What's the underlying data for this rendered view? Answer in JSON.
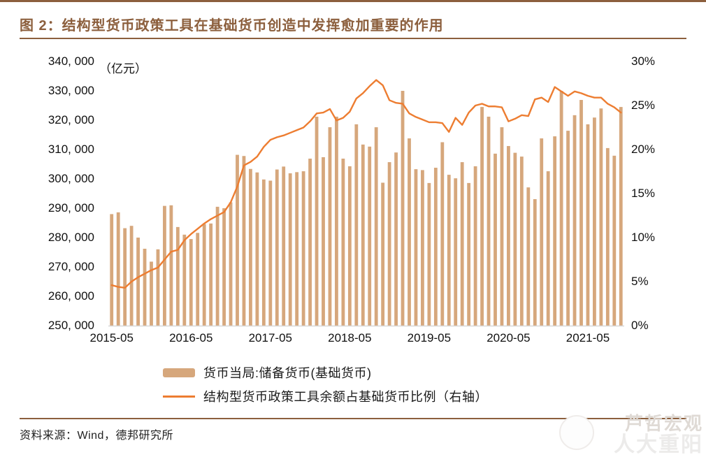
{
  "title": "图 2：结构型货币政策工具在基础货币创造中发挥愈加重要的作用",
  "unit_label": "（亿元）",
  "source": "资料来源：Wind，德邦研究所",
  "watermark": {
    "line1": "芦哲宏观",
    "line2": "人大重阳"
  },
  "legend": {
    "bar_label": "货币当局:储备货币(基础货币)",
    "line_label": "结构型货币政策工具余额占基础货币比例（右轴）"
  },
  "colors": {
    "accent_brown": "#8C5F3D",
    "bar_fill": "#D6A77C",
    "line_stroke": "#ED7D31",
    "baseline": "#d8d8d8",
    "tick_text": "#111111"
  },
  "chart_data": {
    "type": "bar",
    "subtype": "dual-axis bar + line",
    "title": "图 2：结构型货币政策工具在基础货币创造中发挥愈加重要的作用",
    "xlabel": "",
    "ylabel_left": "（亿元）",
    "ylabel_right": "%",
    "grid": false,
    "legend_position": "bottom",
    "left_axis": {
      "min": 250000,
      "max": 340000,
      "tick_step": 10000,
      "tick_labels": [
        "340, 000",
        "330, 000",
        "320, 000",
        "310, 000",
        "300, 000",
        "290, 000",
        "280, 000",
        "270, 000",
        "260, 000",
        "250, 000"
      ]
    },
    "right_axis": {
      "min": 0,
      "max": 30,
      "tick_step": 5,
      "tick_labels": [
        "30%",
        "25%",
        "20%",
        "15%",
        "10%",
        "5%",
        "0%"
      ]
    },
    "x_tick_labels": [
      "2015-05",
      "2016-05",
      "2017-05",
      "2018-05",
      "2019-05",
      "2020-05",
      "2021-05"
    ],
    "x_tick_month_indices": [
      0,
      12,
      24,
      36,
      48,
      60,
      72
    ],
    "x": [
      "2015-05",
      "2015-06",
      "2015-07",
      "2015-08",
      "2015-09",
      "2015-10",
      "2015-11",
      "2015-12",
      "2016-01",
      "2016-02",
      "2016-03",
      "2016-04",
      "2016-05",
      "2016-06",
      "2016-07",
      "2016-08",
      "2016-09",
      "2016-10",
      "2016-11",
      "2016-12",
      "2017-01",
      "2017-02",
      "2017-03",
      "2017-04",
      "2017-05",
      "2017-06",
      "2017-07",
      "2017-08",
      "2017-09",
      "2017-10",
      "2017-11",
      "2017-12",
      "2018-01",
      "2018-02",
      "2018-03",
      "2018-04",
      "2018-05",
      "2018-06",
      "2018-07",
      "2018-08",
      "2018-09",
      "2018-10",
      "2018-11",
      "2018-12",
      "2019-01",
      "2019-02",
      "2019-03",
      "2019-04",
      "2019-05",
      "2019-06",
      "2019-07",
      "2019-08",
      "2019-09",
      "2019-10",
      "2019-11",
      "2019-12",
      "2020-01",
      "2020-02",
      "2020-03",
      "2020-04",
      "2020-05",
      "2020-06",
      "2020-07",
      "2020-08",
      "2020-09",
      "2020-10",
      "2020-11",
      "2020-12",
      "2021-01",
      "2021-02",
      "2021-03",
      "2021-04",
      "2021-05",
      "2021-06",
      "2021-07",
      "2021-08",
      "2021-09",
      "2021-10"
    ],
    "series": [
      {
        "name": "货币当局:储备货币(基础货币)",
        "type": "bar",
        "axis": "left",
        "unit": "亿元",
        "values": [
          288000,
          288600,
          283200,
          284000,
          280000,
          276200,
          271800,
          276000,
          290800,
          291000,
          283600,
          281000,
          279500,
          281600,
          284600,
          284800,
          290500,
          290000,
          292000,
          308200,
          307800,
          303400,
          302200,
          299800,
          299400,
          303200,
          304200,
          301900,
          302300,
          302600,
          306900,
          321200,
          307400,
          317600,
          321200,
          306900,
          304300,
          318600,
          311700,
          311000,
          317600,
          298700,
          305700,
          309000,
          330000,
          313800,
          303300,
          303000,
          298600,
          303800,
          312500,
          301400,
          300200,
          305700,
          298600,
          304300,
          324500,
          321200,
          308600,
          317600,
          311200,
          308900,
          307600,
          297100,
          293100,
          313800,
          302600,
          314500,
          330000,
          316400,
          321700,
          326900,
          318600,
          320900,
          324000,
          310500,
          307900,
          324500
        ]
      },
      {
        "name": "结构型货币政策工具余额占基础货币比例（右轴）",
        "type": "line",
        "axis": "right",
        "unit": "%",
        "values": [
          4.6,
          4.4,
          4.3,
          5.0,
          5.5,
          5.9,
          6.3,
          6.6,
          7.5,
          8.4,
          8.6,
          9.7,
          10.4,
          11.0,
          11.6,
          12.1,
          12.5,
          12.9,
          14.0,
          15.8,
          18.2,
          18.6,
          19.2,
          20.3,
          21.1,
          21.4,
          21.6,
          21.9,
          22.2,
          22.5,
          23.2,
          24.1,
          24.2,
          24.6,
          23.3,
          23.6,
          24.3,
          25.8,
          26.4,
          27.2,
          27.9,
          27.3,
          25.6,
          25.3,
          25.2,
          24.1,
          23.7,
          23.4,
          23.1,
          23.1,
          23.0,
          22.0,
          23.6,
          22.8,
          24.2,
          25.0,
          25.2,
          24.9,
          24.9,
          24.8,
          23.2,
          23.5,
          23.9,
          23.8,
          25.7,
          25.9,
          25.4,
          27.1,
          26.6,
          26.1,
          26.6,
          26.4,
          26.1,
          25.9,
          25.9,
          25.2,
          24.8,
          24.2
        ]
      }
    ]
  }
}
